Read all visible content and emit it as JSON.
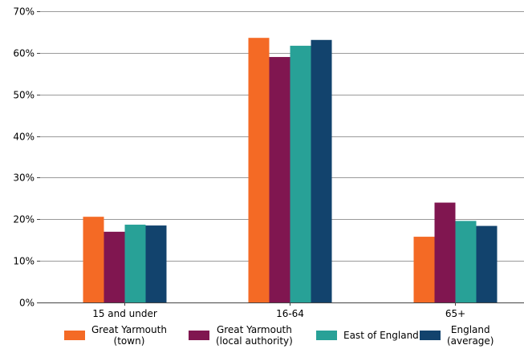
{
  "chart_data": {
    "type": "bar",
    "title": "",
    "xlabel": "",
    "ylabel": "",
    "categories": [
      "15 and under",
      "16-64",
      "65+"
    ],
    "ylim": [
      0,
      70
    ],
    "yticks": [
      0,
      10,
      20,
      30,
      40,
      50,
      60,
      70
    ],
    "ytick_labels": [
      "0%",
      "10%",
      "20%",
      "30%",
      "40%",
      "50%",
      "60%",
      "70%"
    ],
    "grid": true,
    "legend_position": "bottom",
    "series": [
      {
        "name": "Great Yarmouth (town)",
        "name_lines": [
          "Great Yarmouth",
          "(town)"
        ],
        "color": "#f46a25",
        "values": [
          20.6,
          63.6,
          15.8
        ]
      },
      {
        "name": "Great Yarmouth (local authority)",
        "name_lines": [
          "Great Yarmouth",
          "(local authority)"
        ],
        "color": "#801650",
        "values": [
          17.0,
          59.0,
          24.0
        ]
      },
      {
        "name": "East of England",
        "name_lines": [
          "East of England"
        ],
        "color": "#28a197",
        "values": [
          18.7,
          61.7,
          19.6
        ]
      },
      {
        "name": "England (average)",
        "name_lines": [
          "England",
          "(average)"
        ],
        "color": "#12436d",
        "values": [
          18.5,
          63.1,
          18.4
        ]
      }
    ]
  }
}
